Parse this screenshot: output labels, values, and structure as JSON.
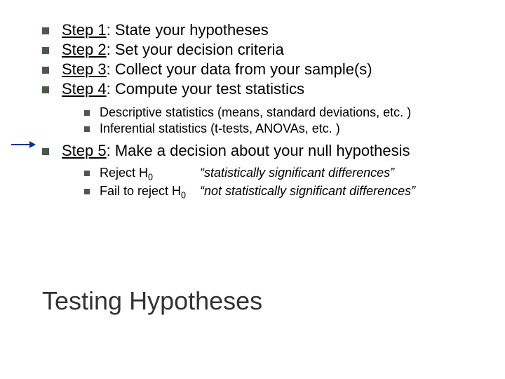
{
  "steps": [
    {
      "label": "Step 1",
      "text": ": State your hypotheses"
    },
    {
      "label": "Step 2",
      "text": ": Set your decision criteria"
    },
    {
      "label": "Step 3",
      "text": ": Collect your data from your sample(s)"
    },
    {
      "label": "Step 4",
      "text": ": Compute your test statistics"
    }
  ],
  "step4_subs": [
    "Descriptive statistics (means, standard deviations, etc. )",
    "Inferential statistics (t-tests, ANOVAs, etc. )"
  ],
  "step5": {
    "label": "Step 5",
    "text": ": Make a decision about your null hypothesis"
  },
  "decisions": [
    {
      "action_prefix": "Reject H",
      "action_sub": "0",
      "result": "“statistically significant differences”"
    },
    {
      "action_prefix": "Fail to reject H",
      "action_sub": "0",
      "result": "“not statistically significant differences”"
    }
  ],
  "title": "Testing Hypotheses",
  "colors": {
    "bullet": "#4a5a4a",
    "arrow": "#003399",
    "text": "#000000",
    "title": "#333333",
    "background": "#ffffff"
  }
}
